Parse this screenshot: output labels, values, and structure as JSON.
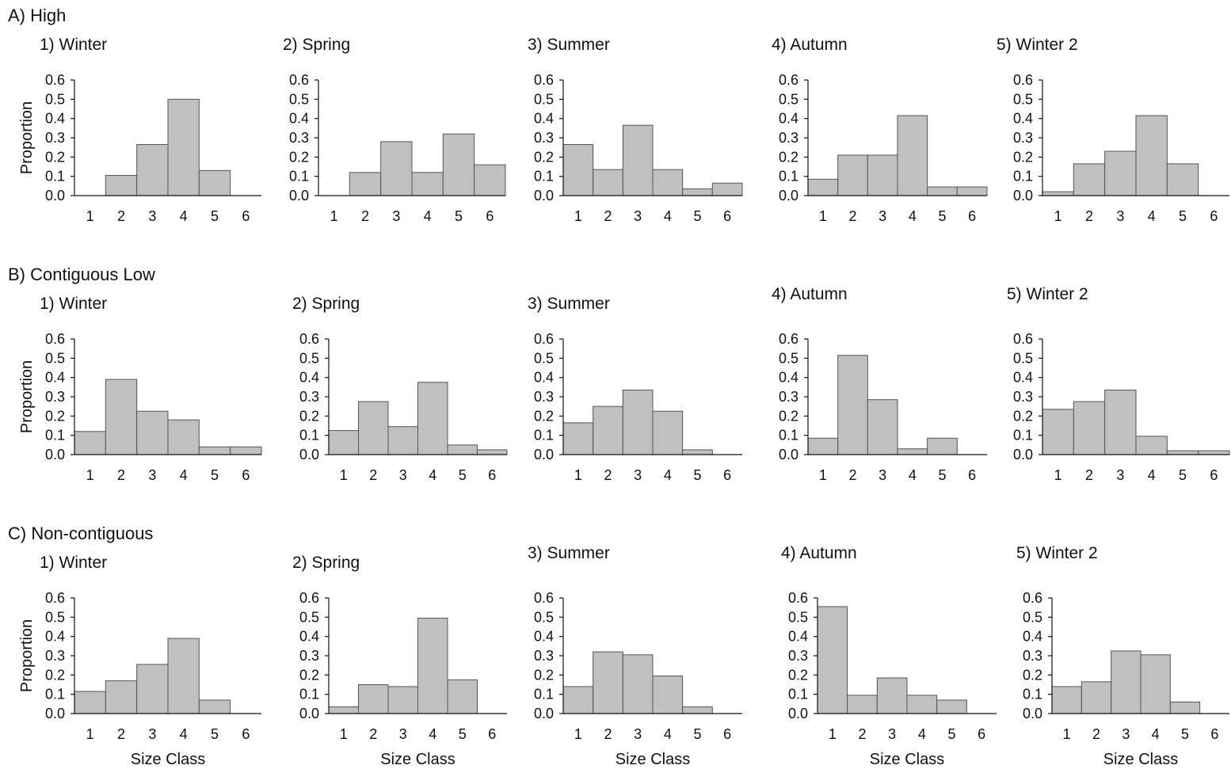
{
  "chart_data": [
    {
      "type": "bar",
      "group": "A) High",
      "title": "1) Winter",
      "categories": [
        "1",
        "2",
        "3",
        "4",
        "5",
        "6"
      ],
      "values": [
        0.0,
        0.105,
        0.265,
        0.5,
        0.13,
        0.0
      ],
      "ylabel": "Proportion",
      "xlabel": "",
      "ylim": [
        0,
        0.6
      ],
      "yticks": [
        "0.0",
        "0.1",
        "0.2",
        "0.3",
        "0.4",
        "0.5",
        "0.6"
      ]
    },
    {
      "type": "bar",
      "group": "A) High",
      "title": "2) Spring",
      "categories": [
        "1",
        "2",
        "3",
        "4",
        "5",
        "6"
      ],
      "values": [
        0.0,
        0.12,
        0.28,
        0.12,
        0.32,
        0.16
      ],
      "ylabel": "",
      "xlabel": "",
      "ylim": [
        0,
        0.6
      ],
      "yticks": [
        "0.0",
        "0.1",
        "0.2",
        "0.3",
        "0.4",
        "0.5",
        "0.6"
      ]
    },
    {
      "type": "bar",
      "group": "A) High",
      "title": "3) Summer",
      "categories": [
        "1",
        "2",
        "3",
        "4",
        "5",
        "6"
      ],
      "values": [
        0.265,
        0.135,
        0.365,
        0.135,
        0.035,
        0.065
      ],
      "ylabel": "",
      "xlabel": "",
      "ylim": [
        0,
        0.6
      ],
      "yticks": [
        "0.0",
        "0.1",
        "0.2",
        "0.3",
        "0.4",
        "0.5",
        "0.6"
      ]
    },
    {
      "type": "bar",
      "group": "A) High",
      "title": "4) Autumn",
      "categories": [
        "1",
        "2",
        "3",
        "4",
        "5",
        "6"
      ],
      "values": [
        0.085,
        0.21,
        0.21,
        0.415,
        0.045,
        0.045
      ],
      "ylabel": "",
      "xlabel": "",
      "ylim": [
        0,
        0.6
      ],
      "yticks": [
        "0.0",
        "0.1",
        "0.2",
        "0.3",
        "0.4",
        "0.5",
        "0.6"
      ]
    },
    {
      "type": "bar",
      "group": "A) High",
      "title": "5) Winter 2",
      "categories": [
        "1",
        "2",
        "3",
        "4",
        "5",
        "6"
      ],
      "values": [
        0.02,
        0.165,
        0.23,
        0.415,
        0.165,
        0.0
      ],
      "ylabel": "",
      "xlabel": "",
      "ylim": [
        0,
        0.6
      ],
      "yticks": [
        "0.0",
        "0.1",
        "0.2",
        "0.3",
        "0.4",
        "0.5",
        "0.6"
      ]
    },
    {
      "type": "bar",
      "group": "B) Contiguous Low",
      "title": "1) Winter",
      "categories": [
        "1",
        "2",
        "3",
        "4",
        "5",
        "6"
      ],
      "values": [
        0.12,
        0.39,
        0.225,
        0.18,
        0.04,
        0.04
      ],
      "ylabel": "Proportion",
      "xlabel": "",
      "ylim": [
        0,
        0.6
      ],
      "yticks": [
        "0.0",
        "0.1",
        "0.2",
        "0.3",
        "0.4",
        "0.5",
        "0.6"
      ]
    },
    {
      "type": "bar",
      "group": "B) Contiguous Low",
      "title": "2) Spring",
      "categories": [
        "1",
        "2",
        "3",
        "4",
        "5",
        "6"
      ],
      "values": [
        0.125,
        0.275,
        0.145,
        0.375,
        0.05,
        0.025
      ],
      "ylabel": "",
      "xlabel": "",
      "ylim": [
        0,
        0.6
      ],
      "yticks": [
        "0.0",
        "0.1",
        "0.2",
        "0.3",
        "0.4",
        "0.5",
        "0.6"
      ]
    },
    {
      "type": "bar",
      "group": "B) Contiguous Low",
      "title": "3) Summer",
      "categories": [
        "1",
        "2",
        "3",
        "4",
        "5",
        "6"
      ],
      "values": [
        0.165,
        0.25,
        0.335,
        0.225,
        0.025,
        0.0
      ],
      "ylabel": "",
      "xlabel": "",
      "ylim": [
        0,
        0.6
      ],
      "yticks": [
        "0.0",
        "0.1",
        "0.2",
        "0.3",
        "0.4",
        "0.5",
        "0.6"
      ]
    },
    {
      "type": "bar",
      "group": "B) Contiguous Low",
      "title": "4) Autumn",
      "categories": [
        "1",
        "2",
        "3",
        "4",
        "5",
        "6"
      ],
      "values": [
        0.085,
        0.515,
        0.285,
        0.03,
        0.085,
        0.0
      ],
      "ylabel": "",
      "xlabel": "",
      "ylim": [
        0,
        0.6
      ],
      "yticks": [
        "0.0",
        "0.1",
        "0.2",
        "0.3",
        "0.4",
        "0.5",
        "0.6"
      ]
    },
    {
      "type": "bar",
      "group": "B) Contiguous Low",
      "title": "5) Winter 2",
      "categories": [
        "1",
        "2",
        "3",
        "4",
        "5",
        "6"
      ],
      "values": [
        0.235,
        0.275,
        0.335,
        0.095,
        0.02,
        0.02
      ],
      "ylabel": "",
      "xlabel": "",
      "ylim": [
        0,
        0.6
      ],
      "yticks": [
        "0.0",
        "0.1",
        "0.2",
        "0.3",
        "0.4",
        "0.5",
        "0.6"
      ]
    },
    {
      "type": "bar",
      "group": "C) Non-contiguous",
      "title": "1) Winter",
      "categories": [
        "1",
        "2",
        "3",
        "4",
        "5",
        "6"
      ],
      "values": [
        0.115,
        0.17,
        0.255,
        0.39,
        0.07,
        0.0
      ],
      "ylabel": "Proportion",
      "xlabel": "Size Class",
      "ylim": [
        0,
        0.6
      ],
      "yticks": [
        "0.0",
        "0.1",
        "0.2",
        "0.3",
        "0.4",
        "0.5",
        "0.6"
      ]
    },
    {
      "type": "bar",
      "group": "C) Non-contiguous",
      "title": "2) Spring",
      "categories": [
        "1",
        "2",
        "3",
        "4",
        "5",
        "6"
      ],
      "values": [
        0.035,
        0.15,
        0.14,
        0.495,
        0.175,
        0.0
      ],
      "ylabel": "",
      "xlabel": "Size Class",
      "ylim": [
        0,
        0.6
      ],
      "yticks": [
        "0.0",
        "0.1",
        "0.2",
        "0.3",
        "0.4",
        "0.5",
        "0.6"
      ]
    },
    {
      "type": "bar",
      "group": "C) Non-contiguous",
      "title": "3) Summer",
      "categories": [
        "1",
        "2",
        "3",
        "4",
        "5",
        "6"
      ],
      "values": [
        0.14,
        0.32,
        0.305,
        0.195,
        0.035,
        0.0
      ],
      "ylabel": "",
      "xlabel": "Size Class",
      "ylim": [
        0,
        0.6
      ],
      "yticks": [
        "0.0",
        "0.1",
        "0.2",
        "0.3",
        "0.4",
        "0.5",
        "0.6"
      ]
    },
    {
      "type": "bar",
      "group": "C) Non-contiguous",
      "title": "4) Autumn",
      "categories": [
        "1",
        "2",
        "3",
        "4",
        "5",
        "6"
      ],
      "values": [
        0.555,
        0.095,
        0.185,
        0.095,
        0.07,
        0.0
      ],
      "ylabel": "",
      "xlabel": "Size Class",
      "ylim": [
        0,
        0.6
      ],
      "yticks": [
        "0.0",
        "0.1",
        "0.2",
        "0.3",
        "0.4",
        "0.5",
        "0.6"
      ]
    },
    {
      "type": "bar",
      "group": "C) Non-contiguous",
      "title": "5) Winter 2",
      "categories": [
        "1",
        "2",
        "3",
        "4",
        "5",
        "6"
      ],
      "values": [
        0.14,
        0.165,
        0.325,
        0.305,
        0.06,
        0.0
      ],
      "ylabel": "",
      "xlabel": "Size Class",
      "ylim": [
        0,
        0.6
      ],
      "yticks": [
        "0.0",
        "0.1",
        "0.2",
        "0.3",
        "0.4",
        "0.5",
        "0.6"
      ]
    }
  ],
  "sections": [
    "A) High",
    "B) Contiguous Low",
    "C) Non-contiguous"
  ],
  "colors": {
    "bar_fill": "#c0c0c0",
    "bar_stroke": "#555555",
    "axis": "#111111"
  }
}
